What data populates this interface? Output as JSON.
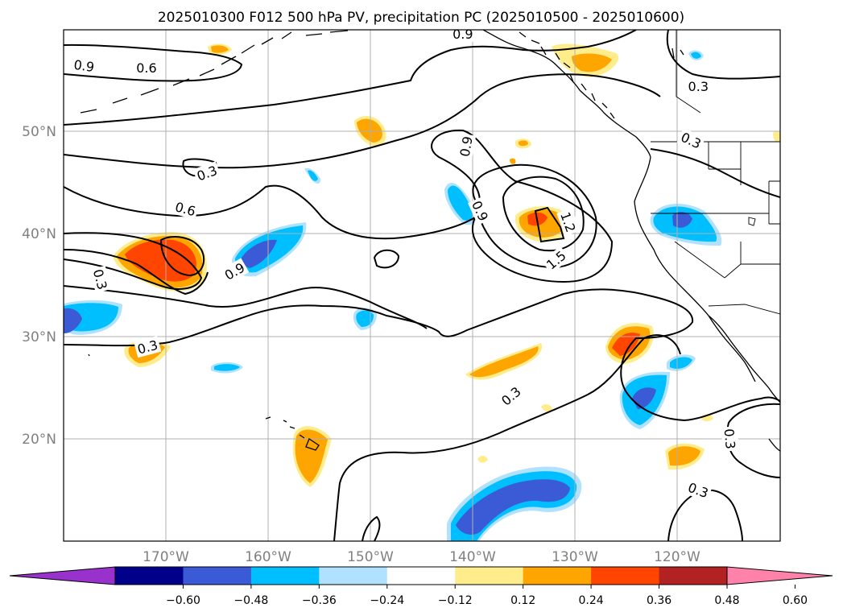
{
  "title": "2025010300 F012 500 hPa PV, precipitation PC (2025010500 - 2025010600)",
  "map": {
    "lon_range": [
      -180,
      -110
    ],
    "lat_range": [
      10,
      60
    ],
    "lat_ticks": [
      {
        "value": 50,
        "label": "50°N"
      },
      {
        "value": 40,
        "label": "40°N"
      },
      {
        "value": 30,
        "label": "30°N"
      },
      {
        "value": 20,
        "label": "20°N"
      }
    ],
    "lon_ticks": [
      {
        "value": -170,
        "label": "170°W"
      },
      {
        "value": -160,
        "label": "160°W"
      },
      {
        "value": -150,
        "label": "150°W"
      },
      {
        "value": -140,
        "label": "140°W"
      },
      {
        "value": -130,
        "label": "130°W"
      },
      {
        "value": -120,
        "label": "120°W"
      }
    ],
    "gridlines": true
  },
  "pv_contour_labels": [
    {
      "text": "0.9",
      "lon": -178,
      "lat": 56.5,
      "rot": 8
    },
    {
      "text": "0.6",
      "lon": -171.9,
      "lat": 56.3,
      "rot": 0
    },
    {
      "text": "0.9",
      "lon": -141,
      "lat": 59.6,
      "rot": 0
    },
    {
      "text": "0.3",
      "lon": -118,
      "lat": 54.5,
      "rot": 0
    },
    {
      "text": "0.3",
      "lon": -118.7,
      "lat": 49.2,
      "rot": 25
    },
    {
      "text": "0.9",
      "lon": -140.7,
      "lat": 48.6,
      "rot": -80
    },
    {
      "text": "0.3",
      "lon": -166,
      "lat": 46,
      "rot": -20
    },
    {
      "text": "0.6",
      "lon": -168.1,
      "lat": 42.5,
      "rot": 15
    },
    {
      "text": "0.9",
      "lon": -139.3,
      "lat": 42.3,
      "rot": 65
    },
    {
      "text": "1.2",
      "lon": -130.7,
      "lat": 41.2,
      "rot": 70
    },
    {
      "text": "1.5",
      "lon": -131.9,
      "lat": 37.5,
      "rot": -40
    },
    {
      "text": "0.9",
      "lon": -163.3,
      "lat": 36.4,
      "rot": -30
    },
    {
      "text": "0.3",
      "lon": -176.4,
      "lat": 35.6,
      "rot": 75
    },
    {
      "text": "0.3",
      "lon": -171.8,
      "lat": 29,
      "rot": -15
    },
    {
      "text": "0.3",
      "lon": -136.3,
      "lat": 24.2,
      "rot": -40
    },
    {
      "text": "0.3",
      "lon": -114.9,
      "lat": 20,
      "rot": 85
    },
    {
      "text": "0.3",
      "lon": -118,
      "lat": 15,
      "rot": 20
    }
  ],
  "colorbar": {
    "levels": [
      "−0.60",
      "−0.48",
      "−0.36",
      "−0.24",
      "−0.12",
      "0.12",
      "0.24",
      "0.36",
      "0.48",
      "0.60"
    ],
    "colors": [
      "#9932cc",
      "#00008b",
      "#3b5bd6",
      "#00bfff",
      "#b0e2ff",
      "#ffffff",
      "#ffec8b",
      "#ffa500",
      "#ff4500",
      "#b22222",
      "#ff82ab"
    ]
  }
}
